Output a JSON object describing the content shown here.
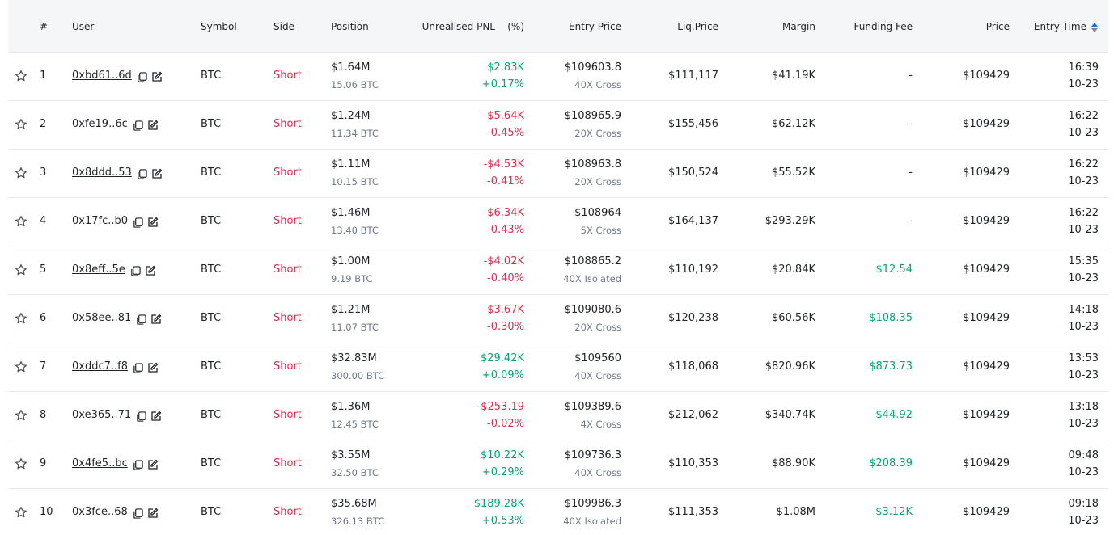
{
  "table": {
    "header": [
      "#",
      "User",
      "Symbol",
      "Side",
      "Position",
      "Unrealised PNL",
      "(%)",
      "Entry Price",
      "Liq.Price",
      "Margin",
      "Funding Fee",
      "Price",
      "Entry Time"
    ],
    "rows": [
      {
        "rank": 1,
        "user": "0xbd61..6d",
        "symbol": "BTC",
        "side": "Short",
        "position": "$1.64M",
        "position_btc": "15.06 BTC",
        "pnl": "$2.83K",
        "pnl_pct": "+0.17%",
        "entry_price": "$109603.8",
        "leverage": "40X Cross",
        "liq_price": "$111,117",
        "margin": "$41.19K",
        "funding_fee": "-",
        "price": "$109429",
        "time": "16:39",
        "date": "10-23"
      },
      {
        "rank": 2,
        "user": "0xfe19..6c",
        "symbol": "BTC",
        "side": "Short",
        "position": "$1.24M",
        "position_btc": "11.34 BTC",
        "pnl": "-$5.64K",
        "pnl_pct": "-0.45%",
        "entry_price": "$108965.9",
        "leverage": "20X Cross",
        "liq_price": "$155,456",
        "margin": "$62.12K",
        "funding_fee": "-",
        "price": "$109429",
        "time": "16:22",
        "date": "10-23"
      },
      {
        "rank": 3,
        "user": "0x8ddd..53",
        "symbol": "BTC",
        "side": "Short",
        "position": "$1.11M",
        "position_btc": "10.15 BTC",
        "pnl": "-$4.53K",
        "pnl_pct": "-0.41%",
        "entry_price": "$108963.8",
        "leverage": "20X Cross",
        "liq_price": "$150,524",
        "margin": "$55.52K",
        "funding_fee": "-",
        "price": "$109429",
        "time": "16:22",
        "date": "10-23"
      },
      {
        "rank": 4,
        "user": "0x17fc..b0",
        "symbol": "BTC",
        "side": "Short",
        "position": "$1.46M",
        "position_btc": "13.40 BTC",
        "pnl": "-$6.34K",
        "pnl_pct": "-0.43%",
        "entry_price": "$108964",
        "leverage": "5X Cross",
        "liq_price": "$164,137",
        "margin": "$293.29K",
        "funding_fee": "-",
        "price": "$109429",
        "time": "16:22",
        "date": "10-23"
      },
      {
        "rank": 5,
        "user": "0x8eff..5e",
        "symbol": "BTC",
        "side": "Short",
        "position": "$1.00M",
        "position_btc": "9.19 BTC",
        "pnl": "-$4.02K",
        "pnl_pct": "-0.40%",
        "entry_price": "$108865.2",
        "leverage": "40X Isolated",
        "liq_price": "$110,192",
        "margin": "$20.84K",
        "funding_fee": "$12.54",
        "price": "$109429",
        "time": "15:35",
        "date": "10-23"
      },
      {
        "rank": 6,
        "user": "0x58ee..81",
        "symbol": "BTC",
        "side": "Short",
        "position": "$1.21M",
        "position_btc": "11.07 BTC",
        "pnl": "-$3.67K",
        "pnl_pct": "-0.30%",
        "entry_price": "$109080.6",
        "leverage": "20X Cross",
        "liq_price": "$120,238",
        "margin": "$60.56K",
        "funding_fee": "$108.35",
        "price": "$109429",
        "time": "14:18",
        "date": "10-23"
      },
      {
        "rank": 7,
        "user": "0xddc7..f8",
        "symbol": "BTC",
        "side": "Short",
        "position": "$32.83M",
        "position_btc": "300.00 BTC",
        "pnl": "$29.42K",
        "pnl_pct": "+0.09%",
        "entry_price": "$109560",
        "leverage": "40X Cross",
        "liq_price": "$118,068",
        "margin": "$820.96K",
        "funding_fee": "$873.73",
        "price": "$109429",
        "time": "13:53",
        "date": "10-23"
      },
      {
        "rank": 8,
        "user": "0xe365..71",
        "symbol": "BTC",
        "side": "Short",
        "position": "$1.36M",
        "position_btc": "12.45 BTC",
        "pnl": "-$253.19",
        "pnl_pct": "-0.02%",
        "entry_price": "$109389.6",
        "leverage": "4X Cross",
        "liq_price": "$212,062",
        "margin": "$340.74K",
        "funding_fee": "$44.92",
        "price": "$109429",
        "time": "13:18",
        "date": "10-23"
      },
      {
        "rank": 9,
        "user": "0x4fe5..bc",
        "symbol": "BTC",
        "side": "Short",
        "position": "$3.55M",
        "position_btc": "32.50 BTC",
        "pnl": "$10.22K",
        "pnl_pct": "+0.29%",
        "entry_price": "$109736.3",
        "leverage": "40X Cross",
        "liq_price": "$110,353",
        "margin": "$88.90K",
        "funding_fee": "$208.39",
        "price": "$109429",
        "time": "09:48",
        "date": "10-23"
      },
      {
        "rank": 10,
        "user": "0x3fce..68",
        "symbol": "BTC",
        "side": "Short",
        "position": "$35.68M",
        "position_btc": "326.13 BTC",
        "pnl": "$189.28K",
        "pnl_pct": "+0.53%",
        "entry_price": "$109986.3",
        "leverage": "40X Isolated",
        "liq_price": "$111,353",
        "margin": "$1.08M",
        "funding_fee": "$3.12K",
        "price": "$109429",
        "time": "09:18",
        "date": "10-23"
      }
    ]
  }
}
